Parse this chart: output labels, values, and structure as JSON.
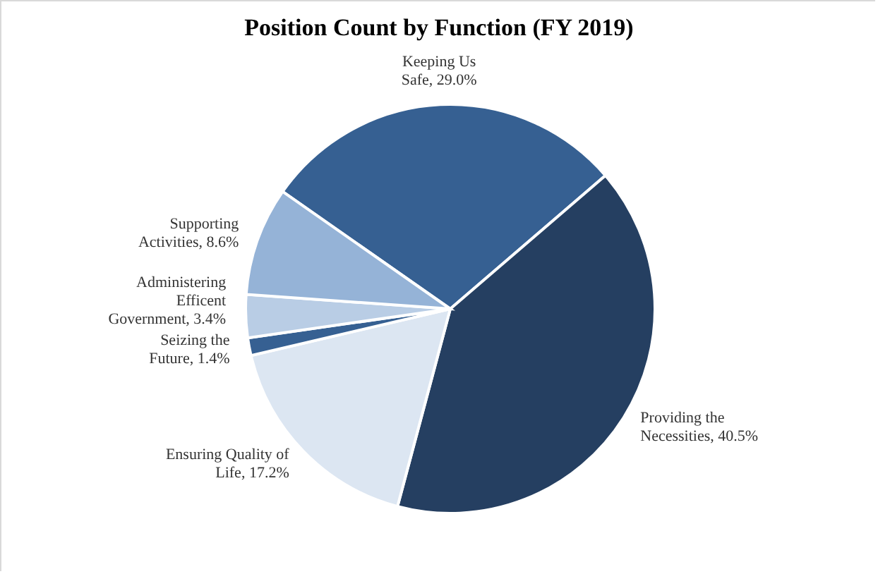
{
  "chart_data": {
    "type": "pie",
    "title": "Position Count by Function (FY 2019)",
    "categories": [
      "Keeping Us Safe",
      "Providing the Necessities",
      "Ensuring Quality of Life",
      "Seizing the Future",
      "Administering Efficent Government",
      "Supporting Activities"
    ],
    "values": [
      29.0,
      40.5,
      17.2,
      1.4,
      3.4,
      8.6
    ],
    "colors": [
      "#366092",
      "#253f61",
      "#dce6f2",
      "#366092",
      "#b9cde5",
      "#95b3d7"
    ],
    "value_labels": [
      "29.0%",
      "40.5%",
      "17.2%",
      "1.4%",
      "3.4%",
      "8.6%"
    ]
  }
}
